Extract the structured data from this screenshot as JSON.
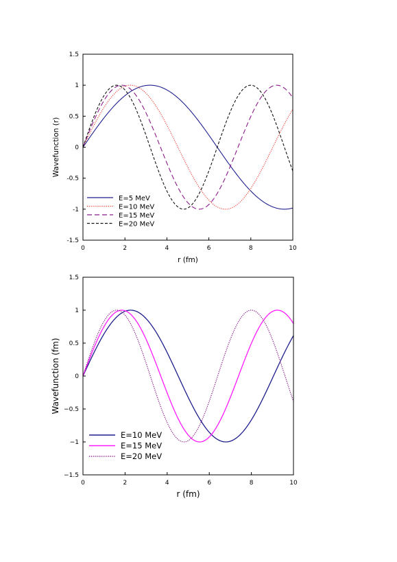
{
  "chart_data": [
    {
      "type": "line",
      "xlabel": "r (fm)",
      "ylabel": "Wavefunction (r)",
      "xlim": [
        0,
        10
      ],
      "ylim": [
        -1.5,
        1.5
      ],
      "xticks": [
        "0",
        "2",
        "4",
        "6",
        "8",
        "10"
      ],
      "yticks": [
        "1.5",
        "1",
        "0.5",
        "0",
        "-0.5",
        "-1",
        "-1.5"
      ],
      "legend_position": "lower-left",
      "grid": false,
      "series": [
        {
          "name": "E=5 MeV",
          "k": 0.4909,
          "color": "#1f1f8f",
          "style": "solid",
          "x": [
            0,
            1,
            2,
            3,
            3.2,
            4,
            5,
            6,
            7,
            8,
            9,
            9.6,
            10
          ],
          "y": [
            0,
            0.47,
            0.83,
            1.0,
            1.0,
            0.93,
            0.63,
            0.2,
            -0.28,
            -0.7,
            -0.96,
            -1.0,
            -0.98
          ]
        },
        {
          "name": "E=10 MeV",
          "k": 0.6943,
          "color": "#e8362a",
          "style": "dotted",
          "x": [
            0,
            1,
            2,
            2.26,
            3,
            4,
            5,
            6,
            6.8,
            7,
            8,
            9,
            10
          ],
          "y": [
            0,
            0.64,
            0.98,
            1.0,
            0.87,
            0.36,
            -0.34,
            -0.87,
            -1.0,
            -0.99,
            -0.67,
            -0.03,
            0.62
          ]
        },
        {
          "name": "E=15 MeV",
          "k": 0.8503,
          "color": "#8b1a8b",
          "style": "dashed",
          "x": [
            0,
            1,
            1.85,
            2,
            3,
            4,
            5,
            5.54,
            6,
            7,
            8,
            9,
            9.24,
            10
          ],
          "y": [
            0,
            0.75,
            1.0,
            0.99,
            0.56,
            -0.26,
            -0.89,
            -1.0,
            -0.93,
            -0.33,
            0.5,
            0.98,
            1.0,
            0.8
          ]
        },
        {
          "name": "E=20 MeV",
          "k": 0.9818,
          "color": "#111111",
          "style": "dashed-short",
          "x": [
            0,
            1,
            1.6,
            2,
            3,
            4,
            4.8,
            5,
            6,
            7,
            8,
            9,
            10
          ],
          "y": [
            0,
            0.83,
            1.0,
            0.92,
            0.2,
            -0.71,
            -1.0,
            -0.98,
            -0.37,
            0.57,
            1.0,
            0.6,
            -0.34
          ]
        }
      ]
    },
    {
      "type": "line",
      "xlabel": "r (fm)",
      "ylabel": "Wavefunction (fm)",
      "xlim": [
        0,
        10
      ],
      "ylim": [
        -1.5,
        1.5
      ],
      "xticks": [
        "0",
        "2",
        "4",
        "6",
        "8",
        "10"
      ],
      "yticks": [
        "1.5",
        "1",
        "0.5",
        "0",
        "−0.5",
        "−1",
        "−1.5"
      ],
      "legend_position": "lower-left",
      "grid": false,
      "series": [
        {
          "name": "E=10 MeV",
          "k": 0.6943,
          "color": "#1c1c8c",
          "style": "solid",
          "x": [
            0,
            1,
            2,
            2.26,
            3,
            4,
            5,
            6,
            6.8,
            7,
            8,
            9,
            10
          ],
          "y": [
            0,
            0.64,
            0.98,
            1.0,
            0.87,
            0.36,
            -0.34,
            -0.87,
            -1.0,
            -0.99,
            -0.67,
            -0.03,
            0.62
          ]
        },
        {
          "name": "E=15 MeV",
          "k": 0.8503,
          "color": "#ff19ff",
          "style": "solid",
          "x": [
            0,
            1,
            1.85,
            2,
            3,
            4,
            5,
            5.54,
            6,
            7,
            8,
            9,
            9.24,
            10
          ],
          "y": [
            0,
            0.75,
            1.0,
            0.99,
            0.56,
            -0.26,
            -0.89,
            -1.0,
            -0.93,
            -0.33,
            0.5,
            0.98,
            1.0,
            0.8
          ]
        },
        {
          "name": "E=20 MeV",
          "k": 0.9818,
          "color": "#8b1a8b",
          "style": "dotted",
          "x": [
            0,
            1,
            1.6,
            2,
            3,
            4,
            4.8,
            5,
            6,
            7,
            8,
            9,
            10
          ],
          "y": [
            0,
            0.83,
            1.0,
            0.92,
            0.2,
            -0.71,
            -1.0,
            -0.98,
            -0.37,
            0.57,
            1.0,
            0.6,
            -0.34
          ]
        }
      ]
    }
  ]
}
